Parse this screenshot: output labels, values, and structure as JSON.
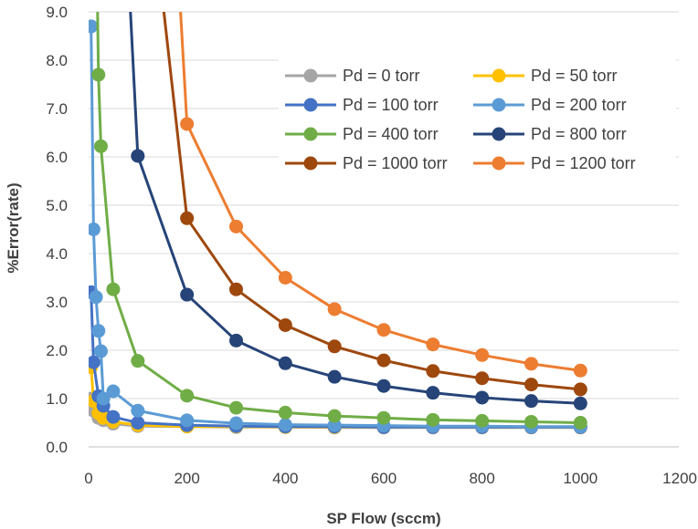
{
  "chart_data": {
    "type": "scatter",
    "title": "",
    "xlabel": "SP Flow (sccm)",
    "ylabel": "%Error(rate)",
    "xlim": [
      0,
      1200
    ],
    "ylim": [
      0,
      9
    ],
    "x_ticks": [
      "0",
      "200",
      "400",
      "600",
      "800",
      "1000",
      "1200"
    ],
    "y_ticks": [
      "0.0",
      "1.0",
      "2.0",
      "3.0",
      "4.0",
      "5.0",
      "6.0",
      "7.0",
      "8.0",
      "9.0"
    ],
    "grid": "horizontal",
    "legend_position": "top-right",
    "series": [
      {
        "name": "Pd = 0 torr",
        "color": "#a5a5a5",
        "x": [
          5,
          10,
          20,
          30,
          50,
          100,
          200,
          300,
          400,
          500,
          600,
          700,
          800,
          900,
          1000
        ],
        "y": [
          1.0,
          0.75,
          0.6,
          0.55,
          0.48,
          0.43,
          0.42,
          0.41,
          0.41,
          0.4,
          0.4,
          0.4,
          0.4,
          0.4,
          0.4
        ]
      },
      {
        "name": "Pd = 50 torr",
        "color": "#ffc000",
        "x": [
          5,
          10,
          20,
          30,
          50,
          100,
          200,
          300,
          400,
          500,
          600,
          700,
          800,
          900,
          1000
        ],
        "y": [
          1.65,
          0.95,
          0.7,
          0.6,
          0.52,
          0.45,
          0.42,
          0.42,
          0.41,
          0.41,
          0.41,
          0.41,
          0.41,
          0.41,
          0.41
        ]
      },
      {
        "name": "Pd = 100 torr",
        "color": "#4472c4",
        "x": [
          5,
          10,
          20,
          30,
          50,
          100,
          200,
          300,
          400,
          500,
          600,
          700,
          800,
          900,
          1000
        ],
        "y": [
          3.2,
          1.75,
          1.05,
          0.85,
          0.62,
          0.5,
          0.45,
          0.43,
          0.42,
          0.42,
          0.41,
          0.41,
          0.41,
          0.41,
          0.41
        ]
      },
      {
        "name": "Pd = 200 torr",
        "color": "#5b9bd5",
        "x": [
          5,
          10,
          15,
          20,
          25,
          30,
          50,
          100,
          200,
          300,
          400,
          500,
          600,
          700,
          800,
          900,
          1000
        ],
        "y": [
          8.7,
          4.5,
          3.1,
          2.4,
          1.98,
          1.0,
          1.15,
          0.75,
          0.55,
          0.49,
          0.46,
          0.45,
          0.44,
          0.43,
          0.43,
          0.42,
          0.42
        ]
      },
      {
        "name": "Pd = 400 torr",
        "color": "#70ad47",
        "x": [
          20,
          25,
          50,
          100,
          200,
          300,
          400,
          500,
          600,
          700,
          800,
          900,
          1000
        ],
        "y": [
          7.7,
          6.22,
          3.26,
          1.78,
          1.06,
          0.81,
          0.71,
          0.64,
          0.6,
          0.56,
          0.54,
          0.52,
          0.5
        ]
      },
      {
        "name": "Pd = 800 torr",
        "color": "#264478",
        "x": [
          100,
          200,
          300,
          400,
          500,
          600,
          700,
          800,
          900,
          1000
        ],
        "y": [
          6.02,
          3.15,
          2.2,
          1.73,
          1.45,
          1.26,
          1.12,
          1.02,
          0.95,
          0.9
        ]
      },
      {
        "name": "Pd = 1000 torr",
        "color": "#9e480e",
        "x": [
          200,
          300,
          400,
          500,
          600,
          700,
          800,
          900,
          1000
        ],
        "y": [
          4.73,
          3.26,
          2.52,
          2.08,
          1.79,
          1.57,
          1.42,
          1.29,
          1.19
        ]
      },
      {
        "name": "Pd = 1200 torr",
        "color": "#ed7d31",
        "x": [
          200,
          300,
          400,
          500,
          600,
          700,
          800,
          900,
          1000
        ],
        "y": [
          6.68,
          4.56,
          3.5,
          2.85,
          2.42,
          2.12,
          1.9,
          1.72,
          1.58
        ]
      }
    ]
  }
}
